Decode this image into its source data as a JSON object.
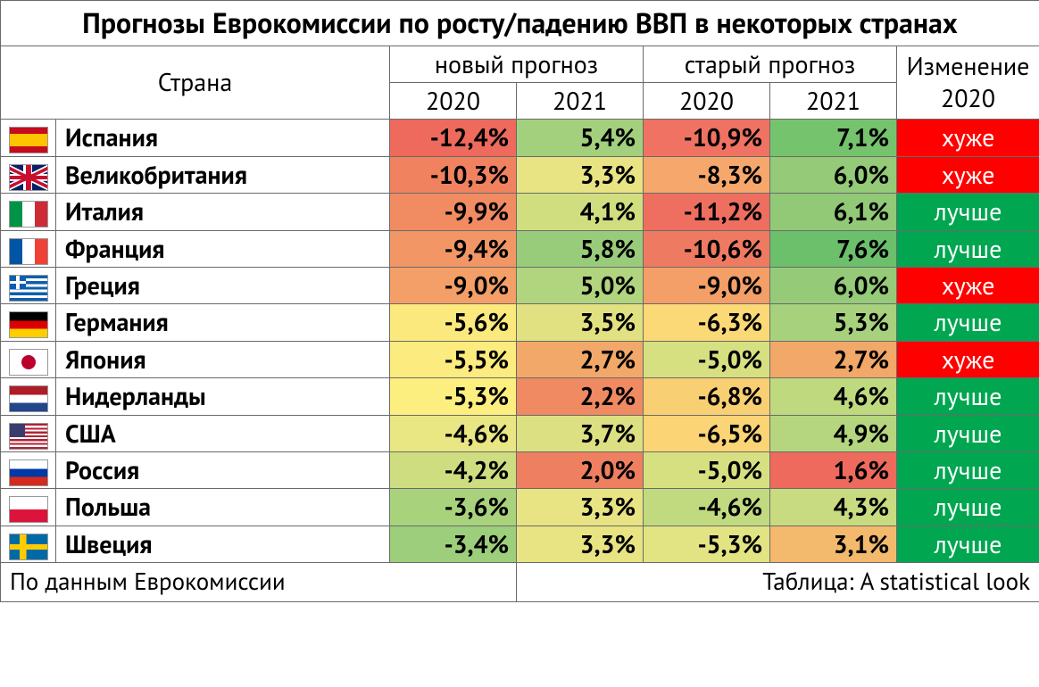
{
  "title": "Прогнозы Еврокомиссии по росту/падению ВВП в некоторых странах",
  "headers": {
    "country": "Страна",
    "new": "новый прогноз",
    "old": "старый прогноз",
    "change": "Изменение 2020",
    "y2020": "2020",
    "y2021": "2021"
  },
  "footer": {
    "left": "По данным Еврокомиссии",
    "right": "Таблица: A statistical look"
  },
  "change_colors": {
    "worse": "#ff0000",
    "better": "#00a650"
  },
  "heat_palette_note": "green-yellow-red gradient, hex captured per cell below",
  "rows": [
    {
      "flag": "es",
      "country": "Испания",
      "new2020": {
        "v": "-12,4%",
        "bg": "#ed6a5d"
      },
      "new2021": {
        "v": "5,4%",
        "bg": "#a3d07d"
      },
      "old2020": {
        "v": "-10,9%",
        "bg": "#ef7263"
      },
      "old2021": {
        "v": "7,1%",
        "bg": "#76c36e"
      },
      "change": {
        "v": "хуже",
        "type": "worse"
      }
    },
    {
      "flag": "gb",
      "country": "Великобритания",
      "new2020": {
        "v": "-10,3%",
        "bg": "#f0825f"
      },
      "new2021": {
        "v": "3,3%",
        "bg": "#e8e383"
      },
      "old2020": {
        "v": "-8,3%",
        "bg": "#f6a86c"
      },
      "old2021": {
        "v": "6,0%",
        "bg": "#94ca78"
      },
      "change": {
        "v": "хуже",
        "type": "worse"
      }
    },
    {
      "flag": "it",
      "country": "Италия",
      "new2020": {
        "v": "-9,9%",
        "bg": "#f18b62"
      },
      "new2021": {
        "v": "4,1%",
        "bg": "#d1de80"
      },
      "old2020": {
        "v": "-11,2%",
        "bg": "#ee6f60"
      },
      "old2021": {
        "v": "6,1%",
        "bg": "#91c977"
      },
      "change": {
        "v": "лучше",
        "type": "better"
      }
    },
    {
      "flag": "fr",
      "country": "Франция",
      "new2020": {
        "v": "-9,4%",
        "bg": "#f29665"
      },
      "new2021": {
        "v": "5,8%",
        "bg": "#99cc7a"
      },
      "old2020": {
        "v": "-10,6%",
        "bg": "#ef7a62"
      },
      "old2021": {
        "v": "7,6%",
        "bg": "#6cbf6b"
      },
      "change": {
        "v": "лучше",
        "type": "better"
      }
    },
    {
      "flag": "gr",
      "country": "Греция",
      "new2020": {
        "v": "-9,0%",
        "bg": "#f49f67"
      },
      "new2021": {
        "v": "5,0%",
        "bg": "#b1d57e"
      },
      "old2020": {
        "v": "-9,0%",
        "bg": "#f49f67"
      },
      "old2021": {
        "v": "6,0%",
        "bg": "#94ca78"
      },
      "change": {
        "v": "хуже",
        "type": "worse"
      }
    },
    {
      "flag": "de",
      "country": "Германия",
      "new2020": {
        "v": "-5,6%",
        "bg": "#fce97d"
      },
      "new2021": {
        "v": "3,5%",
        "bg": "#e2e182"
      },
      "old2020": {
        "v": "-6,3%",
        "bg": "#fbd977"
      },
      "old2021": {
        "v": "5,3%",
        "bg": "#a7d17d"
      },
      "change": {
        "v": "лучше",
        "type": "better"
      }
    },
    {
      "flag": "jp",
      "country": "Япония",
      "new2020": {
        "v": "-5,5%",
        "bg": "#fceb7e"
      },
      "new2021": {
        "v": "2,7%",
        "bg": "#f2a868"
      },
      "old2020": {
        "v": "-5,0%",
        "bg": "#d7e081"
      },
      "old2021": {
        "v": "2,7%",
        "bg": "#f2a868"
      },
      "change": {
        "v": "хуже",
        "type": "worse"
      }
    },
    {
      "flag": "nl",
      "country": "Нидерланды",
      "new2020": {
        "v": "-5,3%",
        "bg": "#fcef80"
      },
      "new2021": {
        "v": "2,2%",
        "bg": "#ef8a62"
      },
      "old2020": {
        "v": "-6,8%",
        "bg": "#f9cf73"
      },
      "old2021": {
        "v": "4,6%",
        "bg": "#bfd97f"
      },
      "change": {
        "v": "лучше",
        "type": "better"
      }
    },
    {
      "flag": "us",
      "country": "США",
      "new2020": {
        "v": "-4,6%",
        "bg": "#e9e684"
      },
      "new2021": {
        "v": "3,7%",
        "bg": "#dce082"
      },
      "old2020": {
        "v": "-6,5%",
        "bg": "#fad475"
      },
      "old2021": {
        "v": "4,9%",
        "bg": "#b5d67e"
      },
      "change": {
        "v": "лучше",
        "type": "better"
      }
    },
    {
      "flag": "ru",
      "country": "Россия",
      "new2020": {
        "v": "-4,2%",
        "bg": "#cedd80"
      },
      "new2021": {
        "v": "2,0%",
        "bg": "#ee7f61"
      },
      "old2020": {
        "v": "-5,0%",
        "bg": "#d7e081"
      },
      "old2021": {
        "v": "1,6%",
        "bg": "#ed6a5d"
      },
      "change": {
        "v": "лучше",
        "type": "better"
      }
    },
    {
      "flag": "pl",
      "country": "Польша",
      "new2020": {
        "v": "-3,6%",
        "bg": "#a9d27d"
      },
      "new2021": {
        "v": "3,3%",
        "bg": "#e8e383"
      },
      "old2020": {
        "v": "-4,6%",
        "bg": "#c2da7f"
      },
      "old2021": {
        "v": "4,3%",
        "bg": "#c8db80"
      },
      "change": {
        "v": "лучше",
        "type": "better"
      }
    },
    {
      "flag": "se",
      "country": "Швеция",
      "new2020": {
        "v": "-3,4%",
        "bg": "#9dce7b"
      },
      "new2021": {
        "v": "3,3%",
        "bg": "#e8e383"
      },
      "old2020": {
        "v": "-5,3%",
        "bg": "#e2e383"
      },
      "old2021": {
        "v": "3,1%",
        "bg": "#f3b96d"
      },
      "change": {
        "v": "лучше",
        "type": "better"
      }
    }
  ]
}
